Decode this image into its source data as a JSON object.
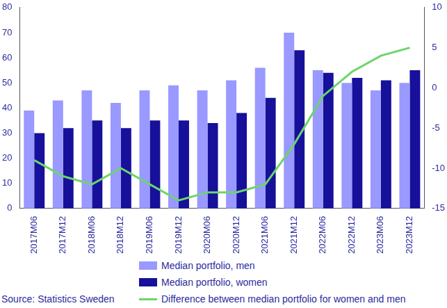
{
  "chart_data": {
    "type": "bar",
    "categories": [
      "2017M06",
      "2017M12",
      "2018M06",
      "2018M12",
      "2019M06",
      "2019M12",
      "2020M06",
      "2020M12",
      "2021M06",
      "2021M12",
      "2022M06",
      "2022M12",
      "2023M06",
      "2023M12"
    ],
    "series": [
      {
        "name": "Median portfolio, men",
        "color": "#9999ff",
        "values": [
          39,
          43,
          47,
          42,
          47,
          49,
          47,
          51,
          56,
          70,
          55,
          50,
          47,
          50
        ]
      },
      {
        "name": "Median portfolio, women",
        "color": "#16109a",
        "values": [
          30,
          32,
          35,
          32,
          35,
          35,
          34,
          38,
          44,
          63,
          54,
          52,
          51,
          55
        ]
      },
      {
        "name": "Difference between median portfolio for women and men",
        "color": "#6dd46d",
        "type": "line",
        "axis": "y2",
        "values": [
          -9,
          -11,
          -12,
          -10,
          -12,
          -14,
          -13,
          -13,
          -12,
          -7,
          -1,
          2,
          4,
          5
        ]
      }
    ],
    "ylim": [
      0,
      80
    ],
    "yticks": [
      0,
      10,
      20,
      30,
      40,
      50,
      60,
      70,
      80
    ],
    "y2lim": [
      -15,
      10
    ],
    "y2ticks": [
      -15,
      -10,
      -5,
      0,
      5,
      10
    ],
    "grid": false,
    "legend": "bottom",
    "source": "Source: Statistics Sweden"
  }
}
